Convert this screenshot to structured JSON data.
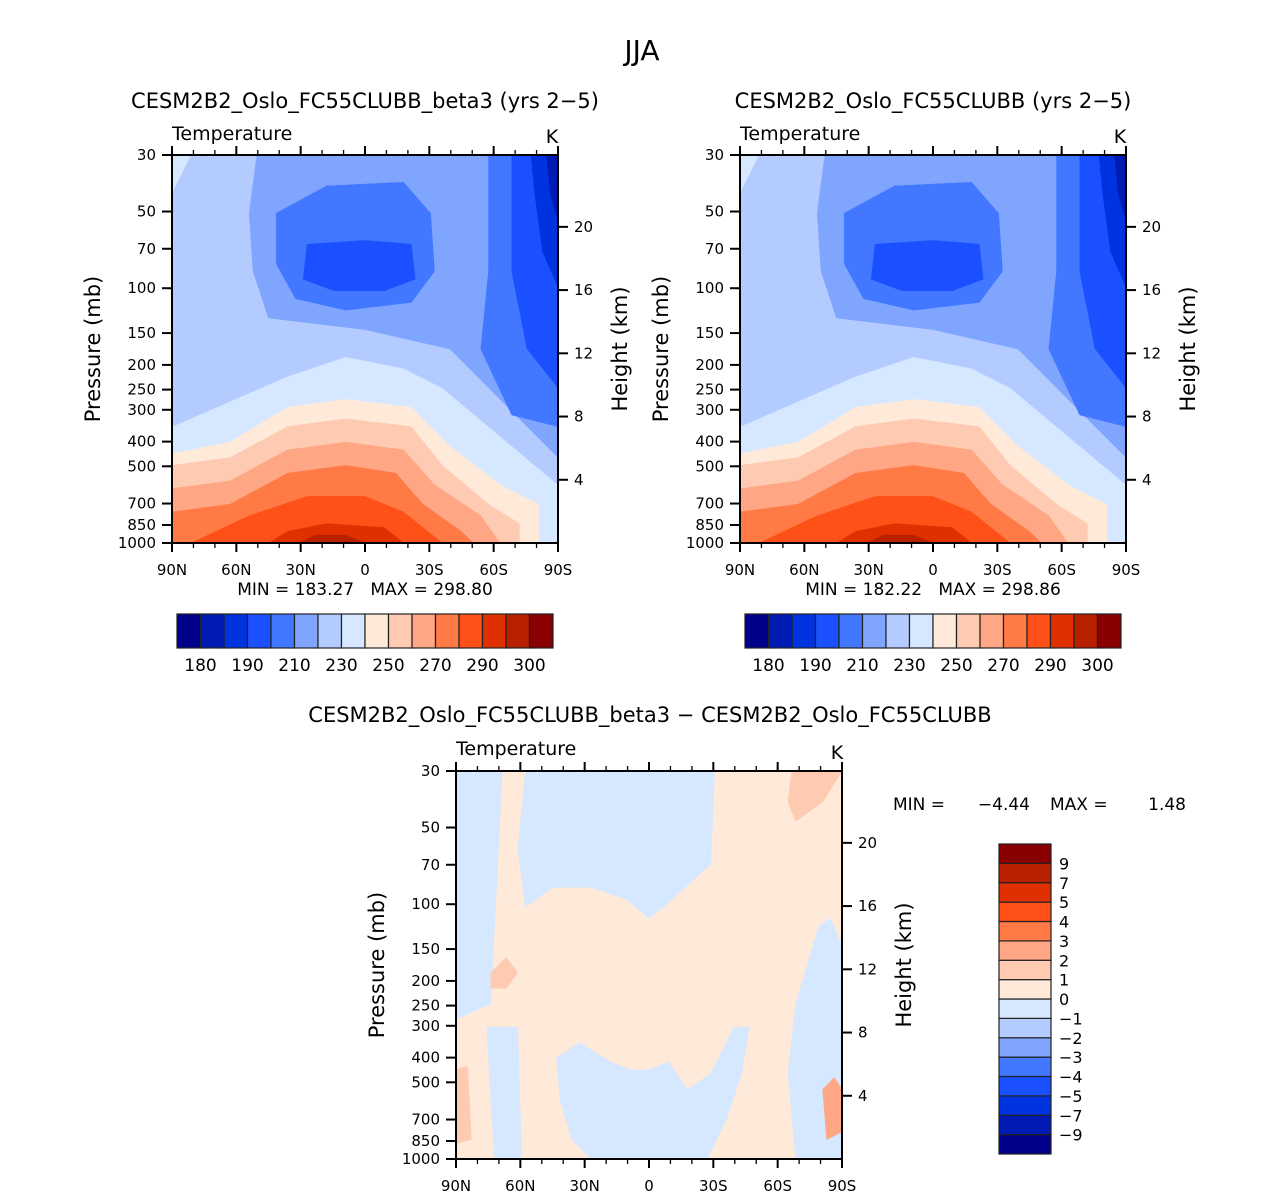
{
  "figure_title": "JJA",
  "colors": {
    "temp_palette": [
      "#00008a",
      "#001ab4",
      "#0033e0",
      "#1a50ff",
      "#4278ff",
      "#7fa5ff",
      "#b3cbff",
      "#d6e8ff",
      "#ffe9d9",
      "#ffcab2",
      "#ffa784",
      "#ff7a45",
      "#ff5018",
      "#e03000",
      "#b82000",
      "#8a0000"
    ],
    "diff_palette": [
      "#00008a",
      "#001ab4",
      "#0033e0",
      "#1a50ff",
      "#4278ff",
      "#7fa5ff",
      "#b3cbff",
      "#d6e8ff",
      "#ffe9d9",
      "#ffcab2",
      "#ffa784",
      "#ff7a45",
      "#ff5018",
      "#e03000",
      "#b82000",
      "#8a0000"
    ]
  },
  "chart_data": [
    {
      "id": "panel-beta3",
      "type": "heatmap",
      "title": "CESM2B2_Oslo_FC55CLUBB_beta3 (yrs 2−5)",
      "variable_label": "Temperature",
      "units_label": "K",
      "xlabel": "",
      "ylabel": "Pressure (mb)",
      "ylabel_right": "Height (km)",
      "x_ticks": [
        "90N",
        "60N",
        "30N",
        "0",
        "30S",
        "60S",
        "90S"
      ],
      "x_range": [
        90,
        -90
      ],
      "y_ticks": [
        30,
        50,
        70,
        100,
        150,
        200,
        250,
        300,
        400,
        500,
        700,
        850,
        1000
      ],
      "y_range": [
        30,
        1000
      ],
      "y_scale": "log",
      "y_right_ticks": [
        4,
        8,
        12,
        16,
        20
      ],
      "stats": "MIN = 183.27   MAX = 298.80",
      "min": 183.27,
      "max": 298.8,
      "colorbar": {
        "orientation": "horizontal",
        "levels": [
          180,
          185,
          190,
          200,
          210,
          220,
          230,
          240,
          250,
          260,
          270,
          280,
          290,
          295,
          300
        ],
        "labels": [
          "180",
          "190",
          "210",
          "230",
          "250",
          "270",
          "290",
          "300"
        ]
      },
      "grid": false
    },
    {
      "id": "panel-control",
      "type": "heatmap",
      "title": "CESM2B2_Oslo_FC55CLUBB (yrs 2−5)",
      "variable_label": "Temperature",
      "units_label": "K",
      "xlabel": "",
      "ylabel": "Pressure (mb)",
      "ylabel_right": "Height (km)",
      "x_ticks": [
        "90N",
        "60N",
        "30N",
        "0",
        "30S",
        "60S",
        "90S"
      ],
      "x_range": [
        90,
        -90
      ],
      "y_ticks": [
        30,
        50,
        70,
        100,
        150,
        200,
        250,
        300,
        400,
        500,
        700,
        850,
        1000
      ],
      "y_range": [
        30,
        1000
      ],
      "y_scale": "log",
      "y_right_ticks": [
        4,
        8,
        12,
        16,
        20
      ],
      "stats": "MIN = 182.22   MAX = 298.86",
      "min": 182.22,
      "max": 298.86,
      "colorbar": {
        "orientation": "horizontal",
        "levels": [
          180,
          185,
          190,
          200,
          210,
          220,
          230,
          240,
          250,
          260,
          270,
          280,
          290,
          295,
          300
        ],
        "labels": [
          "180",
          "190",
          "210",
          "230",
          "250",
          "270",
          "290",
          "300"
        ]
      },
      "grid": false
    },
    {
      "id": "panel-diff",
      "type": "heatmap",
      "title": "CESM2B2_Oslo_FC55CLUBB_beta3 − CESM2B2_Oslo_FC55CLUBB",
      "variable_label": "Temperature",
      "units_label": "K",
      "xlabel": "",
      "ylabel": "Pressure (mb)",
      "ylabel_right": "Height (km)",
      "x_ticks": [
        "90N",
        "60N",
        "30N",
        "0",
        "30S",
        "60S",
        "90S"
      ],
      "x_range": [
        90,
        -90
      ],
      "y_ticks": [
        30,
        50,
        70,
        100,
        150,
        200,
        250,
        300,
        400,
        500,
        700,
        850,
        1000
      ],
      "y_range": [
        30,
        1000
      ],
      "y_scale": "log",
      "y_right_ticks": [
        4,
        8,
        12,
        16,
        20
      ],
      "stats_min_label": "MIN =",
      "stats_min_value": "−4.44",
      "stats_max_label": "MAX =",
      "stats_max_value": "1.48",
      "min": -4.44,
      "max": 1.48,
      "colorbar": {
        "orientation": "vertical",
        "levels": [
          -9,
          -7,
          -5,
          -4,
          -3,
          -2,
          -1,
          0,
          1,
          2,
          3,
          4,
          5,
          7,
          9
        ],
        "labels": [
          "−9",
          "−7",
          "−5",
          "−4",
          "−3",
          "−2",
          "−1",
          "0",
          "1",
          "2",
          "3",
          "4",
          "5",
          "7",
          "9"
        ]
      },
      "grid": false
    }
  ]
}
